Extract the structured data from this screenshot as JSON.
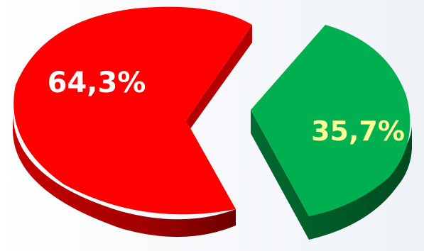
{
  "chart_data": {
    "type": "pie",
    "style": "3d-exploded",
    "slices": [
      {
        "value": 64.3,
        "label": "64,3%",
        "color": "#ff0000",
        "side_color": "#b00000",
        "label_color": "#ffffff"
      },
      {
        "value": 35.7,
        "label": "35,7%",
        "color": "#00b050",
        "side_color": "#00602a",
        "label_color": "#ffff99"
      }
    ]
  }
}
